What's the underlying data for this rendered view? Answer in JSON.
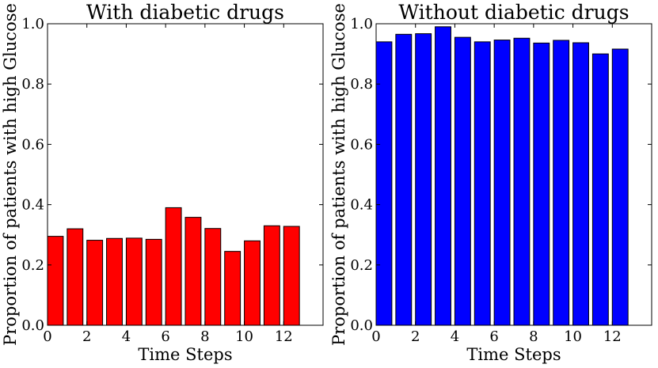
{
  "chart_data": [
    {
      "type": "bar",
      "title": "With diabetic drugs",
      "xlabel": "Time Steps",
      "ylabel": "Proportion of patients with high Glucose",
      "x": [
        0,
        1,
        2,
        3,
        4,
        5,
        6,
        7,
        8,
        9,
        10,
        11,
        12
      ],
      "values": [
        0.295,
        0.32,
        0.282,
        0.288,
        0.289,
        0.285,
        0.39,
        0.358,
        0.321,
        0.245,
        0.28,
        0.33,
        0.328
      ],
      "bar_color": "#ff0000",
      "xlim": [
        0,
        14
      ],
      "ylim": [
        0,
        1.0
      ],
      "xticks": [
        0,
        2,
        4,
        6,
        8,
        10,
        12
      ],
      "xtick_labels": [
        "0",
        "2",
        "4",
        "6",
        "8",
        "10",
        "12"
      ],
      "yticks": [
        0,
        0.2,
        0.4,
        0.6,
        0.8,
        1.0
      ],
      "ytick_labels": [
        "0.0",
        "0.2",
        "0.4",
        "0.6",
        "0.8",
        "1.0"
      ]
    },
    {
      "type": "bar",
      "title": "Without diabetic drugs",
      "xlabel": "Time Steps",
      "ylabel": "Proportion of patients with high Glucose",
      "x": [
        0,
        1,
        2,
        3,
        4,
        5,
        6,
        7,
        8,
        9,
        10,
        11,
        12
      ],
      "values": [
        0.94,
        0.965,
        0.967,
        0.99,
        0.955,
        0.94,
        0.946,
        0.952,
        0.936,
        0.945,
        0.937,
        0.9,
        0.916
      ],
      "bar_color": "#0000ff",
      "xlim": [
        0,
        14
      ],
      "ylim": [
        0,
        1.0
      ],
      "xticks": [
        0,
        2,
        4,
        6,
        8,
        10,
        12
      ],
      "xtick_labels": [
        "0",
        "2",
        "4",
        "6",
        "8",
        "10",
        "12"
      ],
      "yticks": [
        0,
        0.2,
        0.4,
        0.6,
        0.8,
        1.0
      ],
      "ytick_labels": [
        "0.0",
        "0.2",
        "0.4",
        "0.6",
        "0.8",
        "1.0"
      ]
    }
  ]
}
